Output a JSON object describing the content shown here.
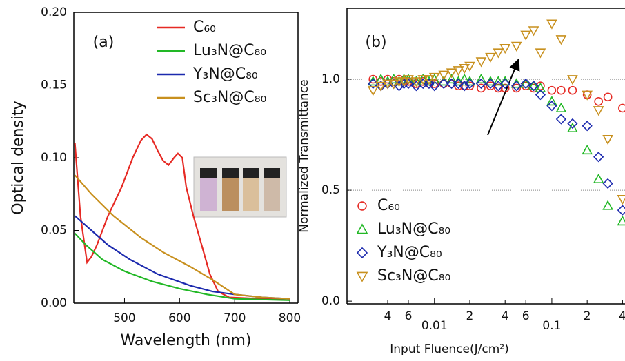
{
  "chart_data": [
    {
      "type": "line",
      "annotation": "(a)",
      "xlabel": "Wavelength (nm)",
      "ylabel": "Optical density",
      "xlim": [
        408,
        815
      ],
      "xticks": [
        500,
        600,
        700,
        800
      ],
      "ylim": [
        0,
        0.2
      ],
      "yticks": [
        {
          "value": 0,
          "label": "0.00"
        },
        {
          "value": 0.05,
          "label": "0.05"
        },
        {
          "value": 0.1,
          "label": "0.10"
        },
        {
          "value": 0.15,
          "label": "0.15"
        },
        {
          "value": 0.2,
          "label": "0.20"
        }
      ],
      "legend": "upper right",
      "series": [
        {
          "name": "C₆₀",
          "color": "#e62a24",
          "x": [
            410,
            420,
            432,
            440,
            450,
            470,
            495,
            515,
            530,
            540,
            550,
            560,
            570,
            580,
            590,
            597,
            605,
            612,
            625,
            640,
            655,
            670,
            690,
            750,
            800
          ],
          "values": [
            0.11,
            0.06,
            0.028,
            0.032,
            0.04,
            0.06,
            0.08,
            0.1,
            0.112,
            0.116,
            0.113,
            0.105,
            0.098,
            0.095,
            0.1,
            0.103,
            0.1,
            0.08,
            0.06,
            0.04,
            0.02,
            0.008,
            0.004,
            0.003,
            0.003
          ]
        },
        {
          "name": "Lu₃N@C₈₀",
          "color": "#22b826",
          "x": [
            410,
            430,
            460,
            500,
            550,
            600,
            650,
            700,
            800
          ],
          "values": [
            0.048,
            0.04,
            0.03,
            0.022,
            0.015,
            0.01,
            0.006,
            0.003,
            0.002
          ]
        },
        {
          "name": "Y₃N@C₈₀",
          "color": "#1c2aae",
          "x": [
            410,
            440,
            470,
            510,
            560,
            620,
            660,
            700,
            750,
            800
          ],
          "values": [
            0.06,
            0.05,
            0.04,
            0.03,
            0.02,
            0.012,
            0.008,
            0.006,
            0.004,
            0.003
          ]
        },
        {
          "name": "Sc₃N@C₈₀",
          "color": "#c8901e",
          "x": [
            410,
            440,
            480,
            530,
            570,
            620,
            660,
            700,
            750,
            800
          ],
          "values": [
            0.088,
            0.075,
            0.06,
            0.045,
            0.035,
            0.025,
            0.016,
            0.006,
            0.004,
            0.003
          ]
        }
      ]
    },
    {
      "type": "scatter",
      "annotation": "(b)",
      "xlabel": "Input Fluence(J/cm²)",
      "ylabel": "Normalized Transmittance",
      "xscale": "log",
      "xlim": [
        0.0018,
        0.42
      ],
      "xticks": [
        {
          "value": 0.004,
          "label": "4"
        },
        {
          "value": 0.006,
          "label": "6"
        },
        0.01,
        {
          "value": 0.02,
          "label": "2"
        },
        {
          "value": 0.04,
          "label": "4"
        },
        {
          "value": 0.06,
          "label": "6"
        },
        0.1,
        {
          "value": 0.2,
          "label": "2"
        },
        {
          "value": 0.4,
          "label": "4"
        }
      ],
      "ylim": [
        -0.012,
        1.32
      ],
      "yticks": [
        {
          "value": 0,
          "label": "0.0"
        },
        {
          "value": 0.5,
          "label": "0.5"
        },
        {
          "value": 1,
          "label": "1.0"
        }
      ],
      "grid": true,
      "legend": "lower left",
      "series": [
        {
          "name": "C₆₀",
          "color": "#e62a24",
          "marker": "circle",
          "x": [
            0.003,
            0.0035,
            0.004,
            0.0045,
            0.005,
            0.0055,
            0.006,
            0.007,
            0.008,
            0.009,
            0.01,
            0.012,
            0.014,
            0.016,
            0.018,
            0.02,
            0.025,
            0.03,
            0.035,
            0.04,
            0.05,
            0.06,
            0.07,
            0.08,
            0.1,
            0.12,
            0.15,
            0.2,
            0.25,
            0.3,
            0.4
          ],
          "values": [
            1.0,
            0.99,
            1.0,
            0.99,
            1.0,
            0.99,
            0.99,
            0.98,
            0.99,
            0.98,
            0.98,
            0.98,
            0.98,
            0.97,
            0.97,
            0.97,
            0.96,
            0.97,
            0.96,
            0.96,
            0.96,
            0.97,
            0.96,
            0.97,
            0.95,
            0.95,
            0.95,
            0.93,
            0.9,
            0.92,
            0.87
          ]
        },
        {
          "name": "Lu₃N@C₈₀",
          "color": "#22b826",
          "marker": "triangle",
          "x": [
            0.003,
            0.0035,
            0.004,
            0.0045,
            0.005,
            0.0055,
            0.006,
            0.007,
            0.008,
            0.009,
            0.01,
            0.012,
            0.014,
            0.016,
            0.018,
            0.02,
            0.025,
            0.03,
            0.035,
            0.04,
            0.05,
            0.06,
            0.07,
            0.08,
            0.1,
            0.12,
            0.15,
            0.2,
            0.25,
            0.3,
            0.4
          ],
          "values": [
            0.99,
            1.0,
            0.99,
            1.0,
            0.99,
            1.0,
            1.0,
            0.99,
            1.0,
            0.99,
            1.0,
            0.99,
            1.0,
            0.99,
            1.0,
            0.99,
            1.0,
            0.99,
            0.99,
            0.99,
            0.98,
            0.98,
            0.97,
            0.96,
            0.9,
            0.87,
            0.78,
            0.68,
            0.55,
            0.43,
            0.36
          ]
        },
        {
          "name": "Y₃N@C₈₀",
          "color": "#1c2aae",
          "marker": "diamond",
          "x": [
            0.003,
            0.0035,
            0.004,
            0.0045,
            0.005,
            0.0055,
            0.006,
            0.007,
            0.008,
            0.009,
            0.01,
            0.012,
            0.014,
            0.016,
            0.018,
            0.02,
            0.025,
            0.03,
            0.035,
            0.04,
            0.05,
            0.06,
            0.07,
            0.08,
            0.1,
            0.12,
            0.15,
            0.2,
            0.25,
            0.3,
            0.4
          ],
          "values": [
            0.98,
            0.97,
            0.98,
            0.98,
            0.97,
            0.98,
            0.98,
            0.97,
            0.98,
            0.98,
            0.97,
            0.98,
            0.98,
            0.98,
            0.97,
            0.98,
            0.98,
            0.98,
            0.97,
            0.98,
            0.97,
            0.98,
            0.97,
            0.93,
            0.88,
            0.82,
            0.8,
            0.79,
            0.65,
            0.53,
            0.41
          ]
        },
        {
          "name": "Sc₃N@C₈₀",
          "color": "#c8901e",
          "marker": "triangle-down",
          "x": [
            0.003,
            0.0035,
            0.004,
            0.0045,
            0.005,
            0.0055,
            0.006,
            0.007,
            0.008,
            0.009,
            0.01,
            0.012,
            0.014,
            0.016,
            0.018,
            0.02,
            0.025,
            0.03,
            0.035,
            0.04,
            0.05,
            0.06,
            0.07,
            0.08,
            0.1,
            0.12,
            0.15,
            0.2,
            0.25,
            0.3,
            0.4
          ],
          "values": [
            0.95,
            0.97,
            0.98,
            0.98,
            0.99,
            0.99,
            1.0,
            0.99,
            1.0,
            1.0,
            1.01,
            1.02,
            1.03,
            1.04,
            1.05,
            1.06,
            1.08,
            1.1,
            1.12,
            1.14,
            1.15,
            1.2,
            1.22,
            1.12,
            1.25,
            1.18,
            1.0,
            0.93,
            0.86,
            0.73,
            0.46
          ]
        }
      ]
    }
  ]
}
